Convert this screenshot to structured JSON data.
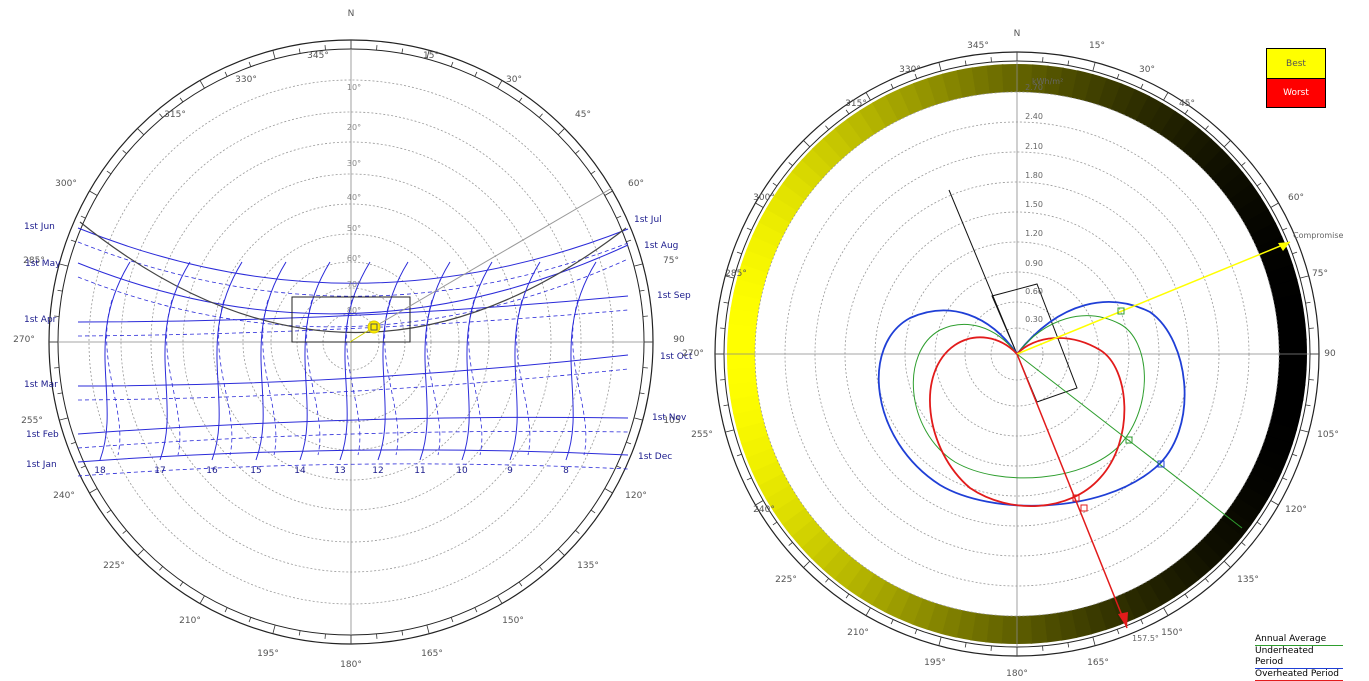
{
  "left_chart": {
    "north_label": "N",
    "azimuth_labels": [
      "345°",
      "15°",
      "330°",
      "30°",
      "315°",
      "45°",
      "300°",
      "60°",
      "285°",
      "75°",
      "270°",
      "90",
      "255°",
      "105",
      "240°",
      "120°",
      "225°",
      "135°",
      "210°",
      "150°",
      "195°",
      "165°",
      "180°"
    ],
    "altitude_labels": [
      "10°",
      "20°",
      "30°",
      "40°",
      "50°",
      "60°",
      "70°",
      "80°"
    ],
    "month_labels_left": [
      "1st Jun",
      "1st May",
      "1st Apr",
      "1st Mar",
      "1st Feb",
      "1st Jan"
    ],
    "month_labels_right": [
      "1st Jul",
      "1st Aug",
      "1st Sep",
      "1st Oct",
      "1st Nov",
      "1st Dec"
    ],
    "hour_labels": [
      "18",
      "17",
      "16",
      "15",
      "14",
      "13",
      "12",
      "11",
      "10",
      "9",
      "8"
    ]
  },
  "right_chart": {
    "north_label": "N",
    "azimuth_labels": [
      "345°",
      "15°",
      "330°",
      "30°",
      "315°",
      "45°",
      "300°",
      "60°",
      "285°",
      "75°",
      "270°",
      "90",
      "255°",
      "105°",
      "240°",
      "120°",
      "225°",
      "135°",
      "210°",
      "150°",
      "195°",
      "165°",
      "180°"
    ],
    "radial_unit": "kWh/m²",
    "radial_labels": [
      "2.70",
      "2.40",
      "2.10",
      "1.80",
      "1.50",
      "1.20",
      "0.90",
      "0.60",
      "0.30"
    ],
    "compromise_label": "Compromise",
    "optimum_angle_label": "157.5°",
    "key": {
      "best": "Best",
      "worst": "Worst"
    },
    "legend": [
      {
        "label": "Annual Average",
        "color": "#2e9e2e"
      },
      {
        "label": "Underheated Period",
        "color": "#1f3fd6"
      },
      {
        "label": "Overheated Period",
        "color": "#e21b1b"
      }
    ]
  },
  "colors": {
    "sun_path": "#2b2bd9",
    "best": "#ffff00",
    "worst": "#ff0000",
    "annual": "#2e9e2e",
    "underheated": "#1f3fd6",
    "overheated": "#e21b1b",
    "compromise": "#ffff00"
  }
}
